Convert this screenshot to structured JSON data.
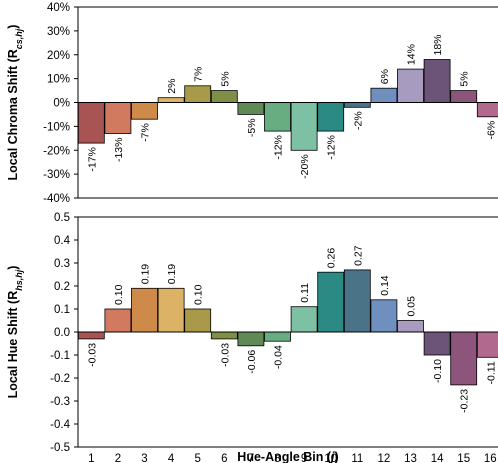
{
  "chart_data": [
    {
      "type": "bar",
      "ylabel_main": "Local Chroma Shift (R",
      "ylabel_sub": "cs,hj",
      "ylabel_end": ")",
      "categories": [
        "1",
        "2",
        "3",
        "4",
        "5",
        "6",
        "7",
        "8",
        "9",
        "10",
        "11",
        "12",
        "13",
        "14",
        "15",
        "16"
      ],
      "values": [
        -0.17,
        -0.13,
        -0.07,
        0.02,
        0.07,
        0.05,
        -0.05,
        -0.12,
        -0.2,
        -0.12,
        -0.02,
        0.06,
        0.14,
        0.18,
        0.05,
        -0.06
      ],
      "data_labels": [
        "-17%",
        "-13%",
        "-7%",
        "2%",
        "7%",
        "5%",
        "-5%",
        "-12%",
        "-20%",
        "-12%",
        "-2%",
        "6%",
        "14%",
        "18%",
        "5%",
        "-6%"
      ],
      "ylim": [
        -0.4,
        0.4
      ],
      "yticks": [
        -0.4,
        -0.3,
        -0.2,
        -0.1,
        0,
        0.1,
        0.2,
        0.3,
        0.4
      ],
      "ytick_labels": [
        "-40%",
        "-30%",
        "-20%",
        "-10%",
        "0%",
        "10%",
        "20%",
        "30%",
        "40%"
      ],
      "grid": false,
      "legend": "none"
    },
    {
      "type": "bar",
      "ylabel_main": "Local Hue Shift (R",
      "ylabel_sub": "hs,hj",
      "ylabel_end": ")",
      "xlabel_main": "Hue-Angle Bin (",
      "xlabel_var": "j",
      "xlabel_end": ")",
      "categories": [
        "1",
        "2",
        "3",
        "4",
        "5",
        "6",
        "7",
        "8",
        "9",
        "10",
        "11",
        "12",
        "13",
        "14",
        "15",
        "16"
      ],
      "values": [
        -0.03,
        0.1,
        0.19,
        0.19,
        0.1,
        -0.03,
        -0.06,
        -0.04,
        0.11,
        0.26,
        0.27,
        0.14,
        0.05,
        -0.1,
        -0.23,
        -0.11
      ],
      "data_labels": [
        "-0.03",
        "0.10",
        "0.19",
        "0.19",
        "0.10",
        "-0.03",
        "-0.06",
        "-0.04",
        "0.11",
        "0.26",
        "0.27",
        "0.14",
        "0.05",
        "-0.10",
        "-0.23",
        "-0.11"
      ],
      "ylim": [
        -0.5,
        0.5
      ],
      "yticks": [
        -0.5,
        -0.4,
        -0.3,
        -0.2,
        -0.1,
        0,
        0.1,
        0.2,
        0.3,
        0.4,
        0.5
      ],
      "ytick_labels": [
        "-0.5",
        "-0.4",
        "-0.3",
        "-0.2",
        "-0.1",
        "0.0",
        "0.1",
        "0.2",
        "0.3",
        "0.4",
        "0.5"
      ],
      "grid": false,
      "legend": "none"
    }
  ],
  "colors": {
    "bars": [
      "#a85454",
      "#d17a60",
      "#cd8a48",
      "#dbb266",
      "#a89a48",
      "#7f8f45",
      "#5f8a55",
      "#68ad82",
      "#7dc0a3",
      "#2c8a84",
      "#4a7388",
      "#6f8fbf",
      "#a89bc0",
      "#6b5478",
      "#8e557c",
      "#b1698e"
    ],
    "bar_edge": "#000000",
    "axis": "#000000"
  }
}
